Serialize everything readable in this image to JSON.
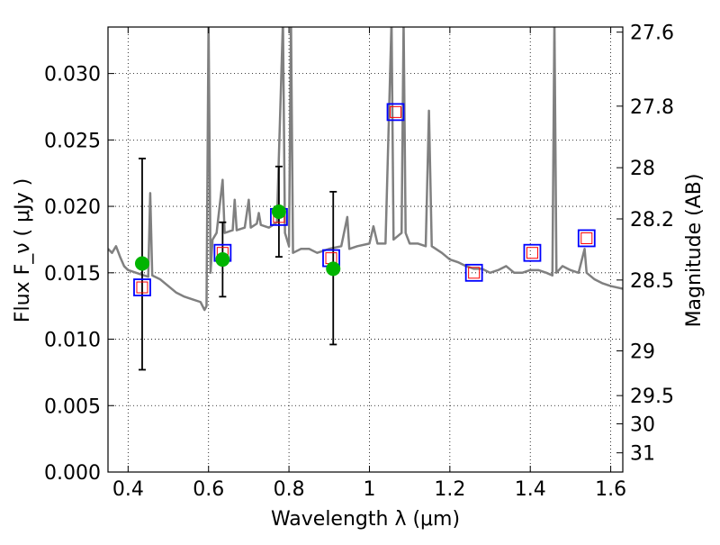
{
  "chart_data": {
    "type": "scatter",
    "xlabel": "Wavelength  λ (μm)",
    "ylabel": "Flux  F_ν  ( μJy )",
    "y2label": "Magnitude (AB)",
    "xlim": [
      0.35,
      1.63
    ],
    "ylim": [
      0.0,
      0.0335
    ],
    "grid": true,
    "grid_style": "dotted",
    "x_ticks": [
      0.4,
      0.6,
      0.8,
      1.0,
      1.2,
      1.4,
      1.6
    ],
    "x_tick_labels": [
      "0.4",
      "0.6",
      "0.8",
      "1",
      "1.2",
      "1.4",
      "1.6"
    ],
    "y_ticks": [
      0.0,
      0.005,
      0.01,
      0.015,
      0.02,
      0.025,
      0.03
    ],
    "y_tick_labels": [
      "0.000",
      "0.005",
      "0.010",
      "0.015",
      "0.020",
      "0.025",
      "0.030"
    ],
    "y2_ticks": [
      27.6,
      27.8,
      28,
      28.2,
      28.5,
      29,
      29.5,
      30,
      31
    ],
    "y2_tick_labels": [
      "27.6",
      "27.8",
      "28",
      "28.2",
      "28.5",
      "29",
      "29.5",
      "30",
      "31"
    ],
    "colors": {
      "spectrum": "#808080",
      "observed": "#00b400",
      "model_box": "#0000ff",
      "model_inner": "#ff0000",
      "errorbar": "#000000"
    },
    "spectrum": [
      [
        0.35,
        0.0168
      ],
      [
        0.36,
        0.0165
      ],
      [
        0.37,
        0.017
      ],
      [
        0.38,
        0.0162
      ],
      [
        0.39,
        0.0155
      ],
      [
        0.4,
        0.0152
      ],
      [
        0.42,
        0.015
      ],
      [
        0.44,
        0.0148
      ],
      [
        0.45,
        0.0147
      ],
      [
        0.455,
        0.021
      ],
      [
        0.46,
        0.0148
      ],
      [
        0.48,
        0.0145
      ],
      [
        0.5,
        0.014
      ],
      [
        0.52,
        0.0135
      ],
      [
        0.54,
        0.0132
      ],
      [
        0.56,
        0.013
      ],
      [
        0.58,
        0.0128
      ],
      [
        0.59,
        0.0122
      ],
      [
        0.595,
        0.0125
      ],
      [
        0.6,
        0.034
      ],
      [
        0.605,
        0.015
      ],
      [
        0.61,
        0.0175
      ],
      [
        0.62,
        0.018
      ],
      [
        0.635,
        0.022
      ],
      [
        0.64,
        0.018
      ],
      [
        0.66,
        0.0182
      ],
      [
        0.665,
        0.0205
      ],
      [
        0.67,
        0.0182
      ],
      [
        0.69,
        0.0184
      ],
      [
        0.7,
        0.0205
      ],
      [
        0.705,
        0.0184
      ],
      [
        0.72,
        0.0187
      ],
      [
        0.725,
        0.0195
      ],
      [
        0.73,
        0.0186
      ],
      [
        0.75,
        0.0184
      ],
      [
        0.77,
        0.0188
      ],
      [
        0.785,
        0.034
      ],
      [
        0.79,
        0.018
      ],
      [
        0.8,
        0.017
      ],
      [
        0.805,
        0.034
      ],
      [
        0.81,
        0.0165
      ],
      [
        0.83,
        0.0168
      ],
      [
        0.85,
        0.0168
      ],
      [
        0.87,
        0.0165
      ],
      [
        0.9,
        0.0168
      ],
      [
        0.93,
        0.017
      ],
      [
        0.945,
        0.0192
      ],
      [
        0.95,
        0.0168
      ],
      [
        0.97,
        0.017
      ],
      [
        1.0,
        0.0172
      ],
      [
        1.01,
        0.0185
      ],
      [
        1.02,
        0.0172
      ],
      [
        1.04,
        0.0172
      ],
      [
        1.055,
        0.034
      ],
      [
        1.06,
        0.0175
      ],
      [
        1.08,
        0.018
      ],
      [
        1.085,
        0.034
      ],
      [
        1.09,
        0.018
      ],
      [
        1.1,
        0.0172
      ],
      [
        1.12,
        0.0172
      ],
      [
        1.14,
        0.017
      ],
      [
        1.148,
        0.0272
      ],
      [
        1.155,
        0.017
      ],
      [
        1.18,
        0.0165
      ],
      [
        1.2,
        0.016
      ],
      [
        1.22,
        0.0158
      ],
      [
        1.24,
        0.0155
      ],
      [
        1.26,
        0.0153
      ],
      [
        1.28,
        0.0153
      ],
      [
        1.3,
        0.015
      ],
      [
        1.32,
        0.0152
      ],
      [
        1.34,
        0.0155
      ],
      [
        1.36,
        0.015
      ],
      [
        1.38,
        0.015
      ],
      [
        1.4,
        0.0152
      ],
      [
        1.42,
        0.0152
      ],
      [
        1.44,
        0.015
      ],
      [
        1.455,
        0.0148
      ],
      [
        1.46,
        0.034
      ],
      [
        1.465,
        0.015
      ],
      [
        1.48,
        0.0155
      ],
      [
        1.5,
        0.0152
      ],
      [
        1.52,
        0.015
      ],
      [
        1.535,
        0.0168
      ],
      [
        1.54,
        0.015
      ],
      [
        1.56,
        0.0145
      ],
      [
        1.58,
        0.0142
      ],
      [
        1.6,
        0.014
      ],
      [
        1.63,
        0.0138
      ]
    ],
    "observed": [
      {
        "x": 0.435,
        "y": 0.0157,
        "yerr_low": 0.0077,
        "yerr_high": 0.0236
      },
      {
        "x": 0.635,
        "y": 0.016,
        "yerr_low": 0.0132,
        "yerr_high": 0.0188
      },
      {
        "x": 0.775,
        "y": 0.0196,
        "yerr_low": 0.0162,
        "yerr_high": 0.023
      },
      {
        "x": 0.91,
        "y": 0.0153,
        "yerr_low": 0.0096,
        "yerr_high": 0.0211
      }
    ],
    "model": [
      {
        "x": 0.435,
        "y": 0.0139
      },
      {
        "x": 0.635,
        "y": 0.0165
      },
      {
        "x": 0.775,
        "y": 0.0192
      },
      {
        "x": 0.905,
        "y": 0.0161
      },
      {
        "x": 1.065,
        "y": 0.0271
      },
      {
        "x": 1.26,
        "y": 0.015
      },
      {
        "x": 1.405,
        "y": 0.0165
      },
      {
        "x": 1.54,
        "y": 0.0176
      }
    ]
  }
}
